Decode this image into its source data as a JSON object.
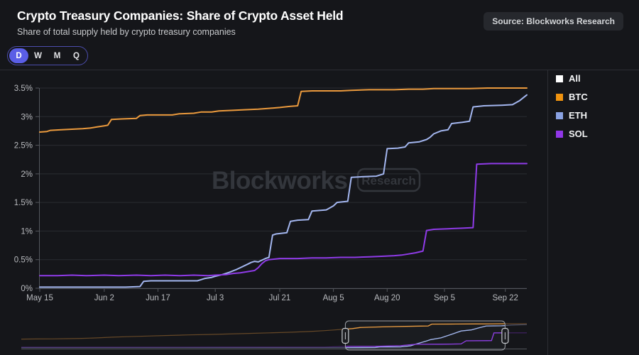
{
  "header": {
    "title": "Crypto Treasury Companies: Share of Crypto Asset Held",
    "subtitle": "Share of total supply held by crypto treasury companies",
    "source_badge": "Source: Blockworks Research"
  },
  "controls": {
    "range_options": [
      "D",
      "W",
      "M",
      "Q"
    ],
    "selected_range": "D"
  },
  "watermark": {
    "brand": "Blockworks",
    "sub": "Research"
  },
  "chart_data": {
    "type": "line",
    "title": "Crypto Treasury Companies: Share of Crypto Asset Held",
    "subtitle": "Share of total supply held by crypto treasury companies",
    "source": "Source: Blockworks Research",
    "grid": "horizontal",
    "legend_position": "right",
    "ylim": [
      0,
      3.5
    ],
    "yticks": [
      {
        "value": 0,
        "label": "0%"
      },
      {
        "value": 0.5,
        "label": "0.5%"
      },
      {
        "value": 1,
        "label": "1%"
      },
      {
        "value": 1.5,
        "label": "1.5%"
      },
      {
        "value": 2,
        "label": "2%"
      },
      {
        "value": 2.5,
        "label": "2.5%"
      },
      {
        "value": 3,
        "label": "3%"
      },
      {
        "value": 3.5,
        "label": "3.5%"
      }
    ],
    "x_domain_days": [
      0,
      136
    ],
    "xticks": [
      {
        "day": 0,
        "label": "May 15"
      },
      {
        "day": 18,
        "label": "Jun 2"
      },
      {
        "day": 33,
        "label": "Jun 17"
      },
      {
        "day": 49,
        "label": "Jul 3"
      },
      {
        "day": 67,
        "label": "Jul 21"
      },
      {
        "day": 82,
        "label": "Aug 5"
      },
      {
        "day": 97,
        "label": "Aug 20"
      },
      {
        "day": 113,
        "label": "Sep 5"
      },
      {
        "day": 130,
        "label": "Sep 22"
      }
    ],
    "legend": [
      {
        "label": "All",
        "color": "#ffffff"
      },
      {
        "label": "BTC",
        "color": "#f0930f"
      },
      {
        "label": "ETH",
        "color": "#8aa2e3"
      },
      {
        "label": "SOL",
        "color": "#9137e8"
      }
    ],
    "series": [
      {
        "name": "BTC",
        "color": "#eb9a3d",
        "points": [
          [
            0,
            2.73
          ],
          [
            2,
            2.74
          ],
          [
            3,
            2.76
          ],
          [
            6,
            2.77
          ],
          [
            9,
            2.78
          ],
          [
            12,
            2.79
          ],
          [
            14,
            2.8
          ],
          [
            16,
            2.82
          ],
          [
            18,
            2.84
          ],
          [
            19,
            2.85
          ],
          [
            20,
            2.95
          ],
          [
            23,
            2.96
          ],
          [
            27,
            2.97
          ],
          [
            28,
            3.02
          ],
          [
            30,
            3.03
          ],
          [
            37,
            3.03
          ],
          [
            39,
            3.05
          ],
          [
            43,
            3.06
          ],
          [
            45,
            3.08
          ],
          [
            48,
            3.08
          ],
          [
            50,
            3.1
          ],
          [
            54,
            3.11
          ],
          [
            57,
            3.12
          ],
          [
            61,
            3.13
          ],
          [
            63,
            3.14
          ],
          [
            65,
            3.15
          ],
          [
            67,
            3.16
          ],
          [
            70,
            3.18
          ],
          [
            72,
            3.19
          ],
          [
            73,
            3.44
          ],
          [
            76,
            3.45
          ],
          [
            84,
            3.45
          ],
          [
            87,
            3.46
          ],
          [
            92,
            3.47
          ],
          [
            99,
            3.47
          ],
          [
            103,
            3.48
          ],
          [
            107,
            3.48
          ],
          [
            110,
            3.49
          ],
          [
            116,
            3.49
          ],
          [
            120,
            3.49
          ],
          [
            125,
            3.5
          ],
          [
            136,
            3.5
          ]
        ]
      },
      {
        "name": "ETH",
        "color": "#a3b6ef",
        "points": [
          [
            0,
            0.02
          ],
          [
            8,
            0.02
          ],
          [
            16,
            0.02
          ],
          [
            24,
            0.02
          ],
          [
            28,
            0.03
          ],
          [
            29,
            0.12
          ],
          [
            31,
            0.13
          ],
          [
            44,
            0.13
          ],
          [
            45,
            0.15
          ],
          [
            46,
            0.17
          ],
          [
            48,
            0.19
          ],
          [
            49,
            0.21
          ],
          [
            51,
            0.24
          ],
          [
            53,
            0.28
          ],
          [
            55,
            0.33
          ],
          [
            56,
            0.36
          ],
          [
            58,
            0.42
          ],
          [
            59,
            0.45
          ],
          [
            60,
            0.47
          ],
          [
            61,
            0.46
          ],
          [
            62,
            0.49
          ],
          [
            63,
            0.52
          ],
          [
            64,
            0.54
          ],
          [
            65,
            0.93
          ],
          [
            66,
            0.95
          ],
          [
            69,
            0.97
          ],
          [
            70,
            1.17
          ],
          [
            72,
            1.19
          ],
          [
            75,
            1.2
          ],
          [
            76,
            1.35
          ],
          [
            80,
            1.37
          ],
          [
            82,
            1.44
          ],
          [
            83,
            1.5
          ],
          [
            86,
            1.52
          ],
          [
            87,
            1.94
          ],
          [
            90,
            1.95
          ],
          [
            94,
            1.96
          ],
          [
            96,
            2.0
          ],
          [
            97,
            2.44
          ],
          [
            100,
            2.45
          ],
          [
            102,
            2.47
          ],
          [
            103,
            2.54
          ],
          [
            106,
            2.56
          ],
          [
            108,
            2.6
          ],
          [
            109,
            2.64
          ],
          [
            110,
            2.7
          ],
          [
            112,
            2.75
          ],
          [
            114,
            2.77
          ],
          [
            115,
            2.88
          ],
          [
            118,
            2.9
          ],
          [
            120,
            2.92
          ],
          [
            121,
            3.17
          ],
          [
            124,
            3.19
          ],
          [
            129,
            3.2
          ],
          [
            132,
            3.21
          ],
          [
            134,
            3.28
          ],
          [
            136,
            3.38
          ]
        ]
      },
      {
        "name": "SOL",
        "color": "#8f3be8",
        "points": [
          [
            0,
            0.22
          ],
          [
            5,
            0.22
          ],
          [
            9,
            0.23
          ],
          [
            13,
            0.22
          ],
          [
            18,
            0.23
          ],
          [
            22,
            0.22
          ],
          [
            27,
            0.23
          ],
          [
            31,
            0.22
          ],
          [
            35,
            0.23
          ],
          [
            39,
            0.22
          ],
          [
            43,
            0.23
          ],
          [
            47,
            0.22
          ],
          [
            49,
            0.23
          ],
          [
            52,
            0.24
          ],
          [
            54,
            0.26
          ],
          [
            56,
            0.27
          ],
          [
            58,
            0.29
          ],
          [
            60,
            0.31
          ],
          [
            61,
            0.36
          ],
          [
            62,
            0.43
          ],
          [
            63,
            0.48
          ],
          [
            64,
            0.5
          ],
          [
            67,
            0.52
          ],
          [
            72,
            0.52
          ],
          [
            76,
            0.53
          ],
          [
            80,
            0.53
          ],
          [
            84,
            0.54
          ],
          [
            88,
            0.54
          ],
          [
            92,
            0.55
          ],
          [
            96,
            0.56
          ],
          [
            99,
            0.57
          ],
          [
            101,
            0.58
          ],
          [
            103,
            0.6
          ],
          [
            105,
            0.62
          ],
          [
            107,
            0.65
          ],
          [
            108,
            1.01
          ],
          [
            110,
            1.03
          ],
          [
            114,
            1.04
          ],
          [
            118,
            1.05
          ],
          [
            121,
            1.06
          ],
          [
            122,
            2.17
          ],
          [
            126,
            2.18
          ],
          [
            136,
            2.18
          ]
        ]
      }
    ],
    "navigator": {
      "brush": {
        "start_frac": 0.641,
        "end_frac": 0.957
      },
      "series": [
        {
          "name": "BTC",
          "color": "#eb9a3d",
          "points": [
            [
              0,
              1.28
            ],
            [
              0.03,
              1.3
            ],
            [
              0.06,
              1.31
            ],
            [
              0.09,
              1.34
            ],
            [
              0.12,
              1.38
            ],
            [
              0.15,
              1.45
            ],
            [
              0.18,
              1.55
            ],
            [
              0.21,
              1.63
            ],
            [
              0.25,
              1.72
            ],
            [
              0.29,
              1.8
            ],
            [
              0.33,
              1.88
            ],
            [
              0.37,
              1.95
            ],
            [
              0.41,
              2.02
            ],
            [
              0.45,
              2.1
            ],
            [
              0.49,
              2.18
            ],
            [
              0.53,
              2.26
            ],
            [
              0.57,
              2.38
            ],
            [
              0.6,
              2.5
            ],
            [
              0.62,
              2.6
            ],
            [
              0.641,
              2.73
            ],
            [
              0.655,
              2.8
            ],
            [
              0.67,
              2.95
            ],
            [
              0.7,
              3.03
            ],
            [
              0.73,
              3.08
            ],
            [
              0.76,
              3.12
            ],
            [
              0.79,
              3.16
            ],
            [
              0.805,
              3.18
            ],
            [
              0.812,
              3.45
            ],
            [
              0.86,
              3.46
            ],
            [
              0.9,
              3.48
            ],
            [
              0.93,
              3.49
            ],
            [
              0.957,
              3.5
            ],
            [
              1,
              3.5
            ]
          ]
        },
        {
          "name": "ETH",
          "color": "#a3b6ef",
          "points": [
            [
              0,
              0.03
            ],
            [
              0.3,
              0.03
            ],
            [
              0.5,
              0.04
            ],
            [
              0.641,
              0.04
            ],
            [
              0.7,
              0.05
            ],
            [
              0.71,
              0.13
            ],
            [
              0.75,
              0.14
            ],
            [
              0.77,
              0.3
            ],
            [
              0.78,
              0.55
            ],
            [
              0.8,
              0.97
            ],
            [
              0.81,
              1.2
            ],
            [
              0.83,
              1.45
            ],
            [
              0.85,
              1.95
            ],
            [
              0.87,
              2.45
            ],
            [
              0.89,
              2.6
            ],
            [
              0.905,
              2.9
            ],
            [
              0.92,
              3.18
            ],
            [
              0.95,
              3.2
            ],
            [
              0.97,
              3.3
            ],
            [
              1,
              3.38
            ]
          ]
        },
        {
          "name": "SOL",
          "color": "#8f3be8",
          "points": [
            [
              0,
              0.1
            ],
            [
              0.2,
              0.1
            ],
            [
              0.4,
              0.11
            ],
            [
              0.6,
              0.12
            ],
            [
              0.641,
              0.22
            ],
            [
              0.7,
              0.23
            ],
            [
              0.75,
              0.32
            ],
            [
              0.78,
              0.52
            ],
            [
              0.83,
              0.54
            ],
            [
              0.87,
              0.58
            ],
            [
              0.88,
              1.03
            ],
            [
              0.92,
              1.05
            ],
            [
              0.93,
              1.06
            ],
            [
              0.935,
              2.17
            ],
            [
              0.96,
              2.18
            ],
            [
              1,
              2.18
            ]
          ]
        }
      ]
    }
  }
}
